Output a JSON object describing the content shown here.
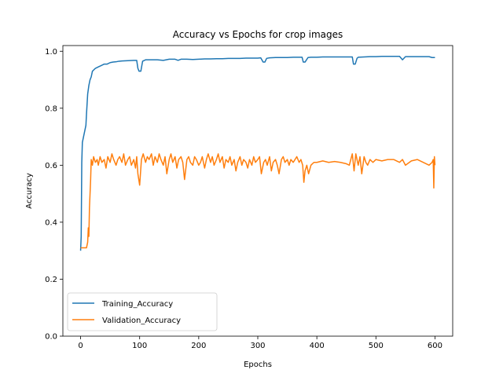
{
  "chart_data": {
    "type": "line",
    "title": "Accuracy vs Epochs for crop images",
    "xlabel": "Epochs",
    "ylabel": "Accuracy",
    "xlim": [
      -30,
      630
    ],
    "ylim": [
      0.0,
      1.02
    ],
    "xticks": [
      0,
      100,
      200,
      300,
      400,
      500,
      600
    ],
    "yticks": [
      0.0,
      0.2,
      0.4,
      0.6,
      0.8,
      1.0
    ],
    "xtick_labels": [
      "0",
      "100",
      "200",
      "300",
      "400",
      "500",
      "600"
    ],
    "ytick_labels": [
      "0.0",
      "0.2",
      "0.4",
      "0.6",
      "0.8",
      "1.0"
    ],
    "grid": false,
    "legend_position": "lower-left",
    "series": [
      {
        "name": "Training_Accuracy",
        "color": "#1f77b4",
        "x": [
          0,
          1,
          2,
          3,
          5,
          7,
          9,
          10,
          12,
          14,
          16,
          18,
          20,
          25,
          30,
          35,
          40,
          45,
          50,
          55,
          60,
          65,
          70,
          80,
          90,
          95,
          97,
          99,
          102,
          105,
          110,
          120,
          130,
          140,
          150,
          160,
          165,
          170,
          180,
          190,
          200,
          210,
          220,
          230,
          240,
          250,
          260,
          270,
          280,
          290,
          300,
          305,
          309,
          312,
          315,
          320,
          330,
          340,
          350,
          360,
          370,
          375,
          377,
          380,
          385,
          390,
          400,
          410,
          420,
          430,
          440,
          450,
          460,
          462,
          465,
          468,
          470,
          480,
          490,
          500,
          510,
          520,
          530,
          540,
          545,
          550,
          560,
          570,
          580,
          590,
          595,
          600
        ],
        "y": [
          0.3,
          0.35,
          0.61,
          0.68,
          0.7,
          0.72,
          0.74,
          0.78,
          0.85,
          0.88,
          0.9,
          0.91,
          0.93,
          0.94,
          0.945,
          0.95,
          0.955,
          0.955,
          0.96,
          0.962,
          0.963,
          0.965,
          0.966,
          0.967,
          0.968,
          0.968,
          0.94,
          0.93,
          0.93,
          0.965,
          0.97,
          0.97,
          0.97,
          0.968,
          0.972,
          0.972,
          0.968,
          0.972,
          0.972,
          0.971,
          0.972,
          0.973,
          0.973,
          0.974,
          0.974,
          0.975,
          0.975,
          0.975,
          0.976,
          0.976,
          0.976,
          0.977,
          0.962,
          0.962,
          0.975,
          0.977,
          0.978,
          0.978,
          0.978,
          0.979,
          0.979,
          0.979,
          0.962,
          0.962,
          0.978,
          0.979,
          0.979,
          0.98,
          0.98,
          0.98,
          0.98,
          0.98,
          0.98,
          0.955,
          0.955,
          0.975,
          0.979,
          0.98,
          0.981,
          0.981,
          0.982,
          0.982,
          0.982,
          0.982,
          0.97,
          0.981,
          0.981,
          0.981,
          0.981,
          0.981,
          0.978,
          0.978
        ]
      },
      {
        "name": "Validation_Accuracy",
        "color": "#ff7f0e",
        "x": [
          0,
          2,
          4,
          6,
          8,
          10,
          12,
          13,
          14,
          15,
          16,
          17,
          18,
          20,
          22,
          25,
          28,
          30,
          33,
          36,
          40,
          43,
          46,
          50,
          53,
          56,
          60,
          63,
          66,
          70,
          73,
          76,
          80,
          83,
          86,
          90,
          93,
          95,
          97,
          100,
          103,
          106,
          110,
          113,
          116,
          120,
          123,
          126,
          130,
          133,
          136,
          140,
          143,
          146,
          150,
          153,
          156,
          160,
          163,
          166,
          170,
          173,
          176,
          180,
          183,
          186,
          190,
          193,
          196,
          200,
          203,
          206,
          210,
          213,
          216,
          220,
          223,
          226,
          230,
          233,
          236,
          240,
          243,
          246,
          250,
          253,
          256,
          260,
          263,
          266,
          270,
          273,
          276,
          280,
          283,
          286,
          290,
          293,
          296,
          300,
          303,
          306,
          310,
          313,
          316,
          320,
          323,
          326,
          330,
          333,
          336,
          340,
          343,
          346,
          350,
          353,
          356,
          360,
          363,
          366,
          370,
          373,
          376,
          378,
          380,
          383,
          386,
          390,
          395,
          400,
          410,
          420,
          430,
          440,
          450,
          455,
          460,
          463,
          466,
          470,
          473,
          476,
          480,
          483,
          486,
          490,
          495,
          500,
          510,
          520,
          530,
          540,
          545,
          550,
          560,
          570,
          580,
          590,
          595,
          597,
          598,
          599,
          600
        ],
        "y": [
          0.31,
          0.31,
          0.31,
          0.31,
          0.31,
          0.31,
          0.33,
          0.38,
          0.35,
          0.45,
          0.5,
          0.55,
          0.62,
          0.6,
          0.63,
          0.61,
          0.62,
          0.6,
          0.63,
          0.61,
          0.62,
          0.59,
          0.63,
          0.61,
          0.64,
          0.62,
          0.6,
          0.62,
          0.63,
          0.61,
          0.64,
          0.6,
          0.62,
          0.63,
          0.6,
          0.62,
          0.59,
          0.63,
          0.57,
          0.53,
          0.62,
          0.64,
          0.61,
          0.63,
          0.62,
          0.64,
          0.6,
          0.63,
          0.61,
          0.64,
          0.62,
          0.6,
          0.63,
          0.57,
          0.62,
          0.64,
          0.61,
          0.63,
          0.59,
          0.62,
          0.63,
          0.61,
          0.55,
          0.62,
          0.63,
          0.61,
          0.6,
          0.63,
          0.62,
          0.6,
          0.61,
          0.63,
          0.59,
          0.62,
          0.64,
          0.61,
          0.63,
          0.6,
          0.62,
          0.64,
          0.61,
          0.63,
          0.59,
          0.62,
          0.61,
          0.63,
          0.6,
          0.62,
          0.58,
          0.61,
          0.63,
          0.6,
          0.62,
          0.61,
          0.59,
          0.62,
          0.6,
          0.63,
          0.61,
          0.62,
          0.63,
          0.57,
          0.61,
          0.62,
          0.6,
          0.63,
          0.58,
          0.61,
          0.62,
          0.6,
          0.57,
          0.62,
          0.63,
          0.61,
          0.62,
          0.6,
          0.62,
          0.61,
          0.62,
          0.63,
          0.61,
          0.62,
          0.6,
          0.54,
          0.58,
          0.6,
          0.57,
          0.6,
          0.61,
          0.61,
          0.615,
          0.61,
          0.613,
          0.61,
          0.605,
          0.6,
          0.64,
          0.58,
          0.64,
          0.6,
          0.63,
          0.57,
          0.63,
          0.61,
          0.6,
          0.62,
          0.61,
          0.62,
          0.615,
          0.62,
          0.62,
          0.61,
          0.62,
          0.6,
          0.615,
          0.62,
          0.61,
          0.6,
          0.61,
          0.62,
          0.52,
          0.63,
          0.6
        ]
      }
    ]
  }
}
